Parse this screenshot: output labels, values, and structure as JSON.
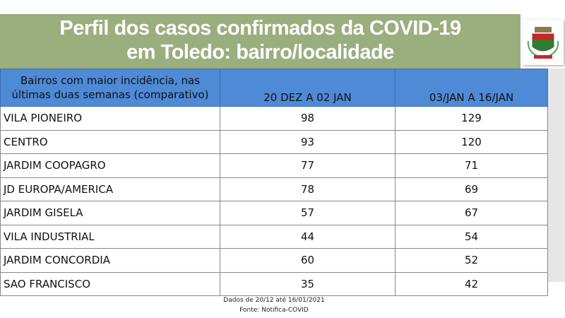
{
  "header": {
    "title_lines": [
      "Perfil dos casos confirmados da COVID-19",
      "em Toledo: bairro/localidade"
    ]
  },
  "table": {
    "columns": [
      [
        "Bairros com maior incidência, nas",
        "últimas duas semanas (comparativo)"
      ],
      "20 DEZ A 02 JAN",
      "03/JAN A 16/JAN"
    ],
    "rows": [
      [
        "VILA PIONEIRO",
        98,
        129
      ],
      [
        "CENTRO",
        93,
        120
      ],
      [
        "JARDIM COOPAGRO",
        77,
        71
      ],
      [
        "JD EUROPA/AMERICA",
        78,
        69
      ],
      [
        "JARDIM GISELA",
        57,
        67
      ],
      [
        "VILA INDUSTRIAL",
        44,
        54
      ],
      [
        "JARDIM CONCORDIA",
        60,
        52
      ],
      [
        "SAO FRANCISCO",
        35,
        42
      ]
    ]
  },
  "footer": {
    "lines": [
      "Dados de 20/12 até 16/01/2021",
      "Fonte: Notifica-COVID"
    ]
  }
}
